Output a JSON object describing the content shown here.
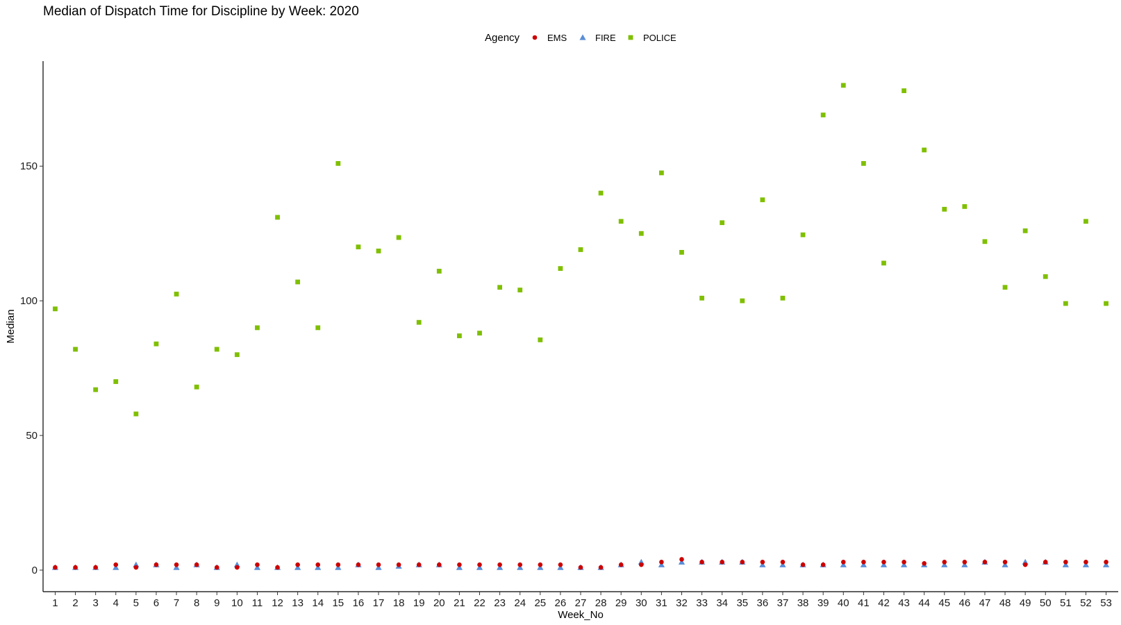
{
  "chart_data": {
    "type": "scatter",
    "title": "Median of Dispatch Time for Discipline by Week: 2020",
    "xlabel": "Week_No",
    "ylabel": "Median",
    "x": [
      1,
      2,
      3,
      4,
      5,
      6,
      7,
      8,
      9,
      10,
      11,
      12,
      13,
      14,
      15,
      16,
      17,
      18,
      19,
      20,
      21,
      22,
      23,
      24,
      25,
      26,
      27,
      28,
      29,
      30,
      31,
      32,
      33,
      34,
      35,
      36,
      37,
      38,
      39,
      40,
      41,
      42,
      43,
      44,
      45,
      46,
      47,
      48,
      49,
      50,
      51,
      52,
      53
    ],
    "xlim": [
      0.4,
      53.6
    ],
    "ylim": [
      -8,
      189
    ],
    "yticks": [
      0,
      50,
      100,
      150
    ],
    "grid": false,
    "legend": {
      "title": "Agency",
      "position": "top"
    },
    "series": [
      {
        "name": "EMS",
        "marker": "circle",
        "color": "#cc0000",
        "values": [
          1,
          1,
          1,
          2,
          1,
          2,
          2,
          2,
          1,
          1,
          2,
          1,
          2,
          2,
          2,
          2,
          2,
          2,
          2,
          2,
          2,
          2,
          2,
          2,
          2,
          2,
          1,
          1,
          2,
          2,
          3,
          4,
          3,
          3,
          3,
          3,
          3,
          2,
          2,
          3,
          3,
          3,
          3,
          2.5,
          3,
          3,
          3,
          3,
          2,
          3,
          3,
          3,
          3
        ]
      },
      {
        "name": "FIRE",
        "marker": "triangle",
        "color": "#5b8ed6",
        "values": [
          1,
          1,
          1,
          1,
          2,
          2,
          1,
          2,
          1,
          2,
          1,
          1,
          1,
          1,
          1,
          2,
          1,
          1.5,
          2,
          2,
          1,
          1,
          1,
          1,
          1,
          1,
          1,
          1,
          2,
          3,
          2,
          3,
          3,
          3,
          3,
          2,
          2,
          2,
          2,
          2,
          2,
          2,
          2,
          2,
          2,
          2,
          3,
          2,
          3,
          3,
          2,
          2,
          2
        ]
      },
      {
        "name": "POLICE",
        "marker": "square",
        "color": "#7fbf00",
        "values": [
          97,
          82,
          67,
          70,
          58,
          84,
          102.5,
          68,
          82,
          80,
          90,
          131,
          107,
          90,
          151,
          120,
          118.5,
          123.5,
          92,
          111,
          87,
          88,
          105,
          104,
          85.5,
          112,
          119,
          140,
          129.5,
          125,
          147.5,
          118,
          101,
          129,
          100,
          137.5,
          101,
          124.5,
          169,
          180,
          151,
          114,
          178,
          156,
          134,
          135,
          122,
          105,
          126,
          109,
          99,
          129.5,
          99
        ]
      }
    ]
  }
}
